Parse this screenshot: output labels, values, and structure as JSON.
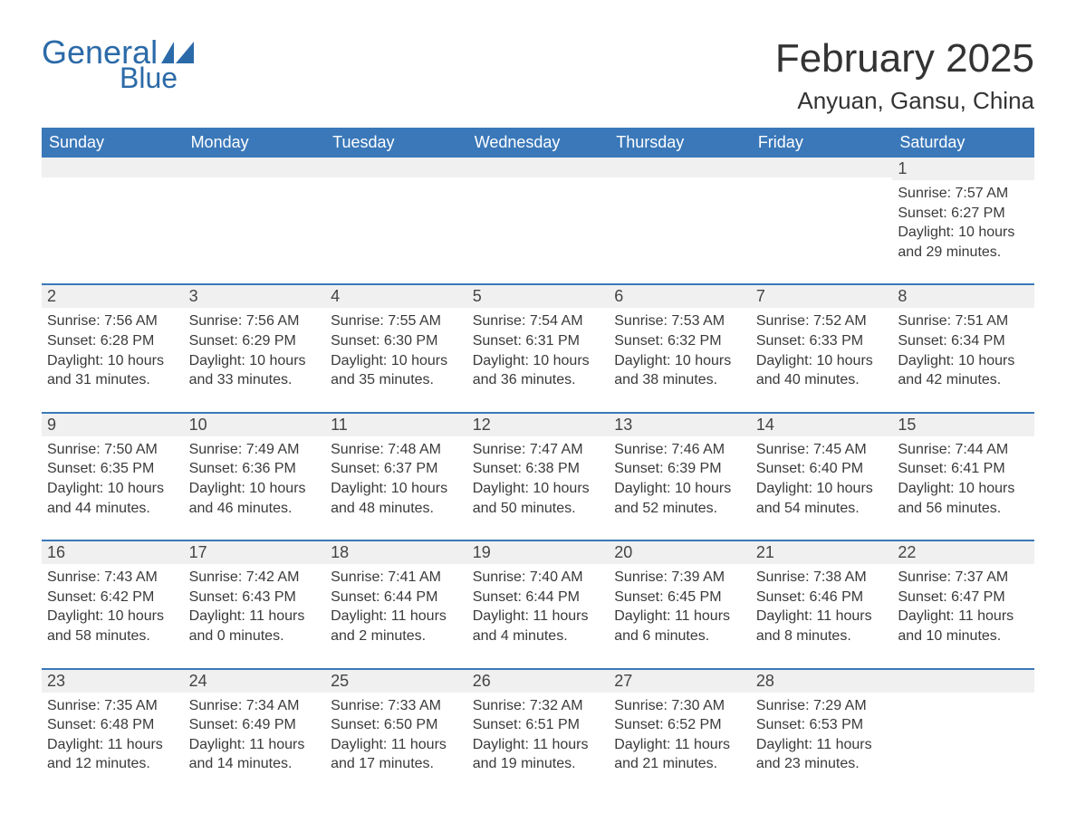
{
  "colors": {
    "header_bg": "#3a78b9",
    "header_text": "#ffffff",
    "band_bg": "#f0f0f0",
    "row_border_top": "#3a78b9",
    "row_separator": "#bfbfbf",
    "body_text": "#333333",
    "logo_text": "#2b6aa8",
    "logo_sail": "#2b6aa8"
  },
  "typography": {
    "title_fontsize": 44,
    "location_fontsize": 26,
    "header_fontsize": 18,
    "daynum_fontsize": 18,
    "body_fontsize": 16
  },
  "logo": {
    "line1": "General",
    "line2": "Blue"
  },
  "title": "February 2025",
  "location": "Anyuan, Gansu, China",
  "columns": [
    "Sunday",
    "Monday",
    "Tuesday",
    "Wednesday",
    "Thursday",
    "Friday",
    "Saturday"
  ],
  "weeks": [
    [
      null,
      null,
      null,
      null,
      null,
      null,
      {
        "n": "1",
        "sunrise": "Sunrise: 7:57 AM",
        "sunset": "Sunset: 6:27 PM",
        "daylight": "Daylight: 10 hours and 29 minutes."
      }
    ],
    [
      {
        "n": "2",
        "sunrise": "Sunrise: 7:56 AM",
        "sunset": "Sunset: 6:28 PM",
        "daylight": "Daylight: 10 hours and 31 minutes."
      },
      {
        "n": "3",
        "sunrise": "Sunrise: 7:56 AM",
        "sunset": "Sunset: 6:29 PM",
        "daylight": "Daylight: 10 hours and 33 minutes."
      },
      {
        "n": "4",
        "sunrise": "Sunrise: 7:55 AM",
        "sunset": "Sunset: 6:30 PM",
        "daylight": "Daylight: 10 hours and 35 minutes."
      },
      {
        "n": "5",
        "sunrise": "Sunrise: 7:54 AM",
        "sunset": "Sunset: 6:31 PM",
        "daylight": "Daylight: 10 hours and 36 minutes."
      },
      {
        "n": "6",
        "sunrise": "Sunrise: 7:53 AM",
        "sunset": "Sunset: 6:32 PM",
        "daylight": "Daylight: 10 hours and 38 minutes."
      },
      {
        "n": "7",
        "sunrise": "Sunrise: 7:52 AM",
        "sunset": "Sunset: 6:33 PM",
        "daylight": "Daylight: 10 hours and 40 minutes."
      },
      {
        "n": "8",
        "sunrise": "Sunrise: 7:51 AM",
        "sunset": "Sunset: 6:34 PM",
        "daylight": "Daylight: 10 hours and 42 minutes."
      }
    ],
    [
      {
        "n": "9",
        "sunrise": "Sunrise: 7:50 AM",
        "sunset": "Sunset: 6:35 PM",
        "daylight": "Daylight: 10 hours and 44 minutes."
      },
      {
        "n": "10",
        "sunrise": "Sunrise: 7:49 AM",
        "sunset": "Sunset: 6:36 PM",
        "daylight": "Daylight: 10 hours and 46 minutes."
      },
      {
        "n": "11",
        "sunrise": "Sunrise: 7:48 AM",
        "sunset": "Sunset: 6:37 PM",
        "daylight": "Daylight: 10 hours and 48 minutes."
      },
      {
        "n": "12",
        "sunrise": "Sunrise: 7:47 AM",
        "sunset": "Sunset: 6:38 PM",
        "daylight": "Daylight: 10 hours and 50 minutes."
      },
      {
        "n": "13",
        "sunrise": "Sunrise: 7:46 AM",
        "sunset": "Sunset: 6:39 PM",
        "daylight": "Daylight: 10 hours and 52 minutes."
      },
      {
        "n": "14",
        "sunrise": "Sunrise: 7:45 AM",
        "sunset": "Sunset: 6:40 PM",
        "daylight": "Daylight: 10 hours and 54 minutes."
      },
      {
        "n": "15",
        "sunrise": "Sunrise: 7:44 AM",
        "sunset": "Sunset: 6:41 PM",
        "daylight": "Daylight: 10 hours and 56 minutes."
      }
    ],
    [
      {
        "n": "16",
        "sunrise": "Sunrise: 7:43 AM",
        "sunset": "Sunset: 6:42 PM",
        "daylight": "Daylight: 10 hours and 58 minutes."
      },
      {
        "n": "17",
        "sunrise": "Sunrise: 7:42 AM",
        "sunset": "Sunset: 6:43 PM",
        "daylight": "Daylight: 11 hours and 0 minutes."
      },
      {
        "n": "18",
        "sunrise": "Sunrise: 7:41 AM",
        "sunset": "Sunset: 6:44 PM",
        "daylight": "Daylight: 11 hours and 2 minutes."
      },
      {
        "n": "19",
        "sunrise": "Sunrise: 7:40 AM",
        "sunset": "Sunset: 6:44 PM",
        "daylight": "Daylight: 11 hours and 4 minutes."
      },
      {
        "n": "20",
        "sunrise": "Sunrise: 7:39 AM",
        "sunset": "Sunset: 6:45 PM",
        "daylight": "Daylight: 11 hours and 6 minutes."
      },
      {
        "n": "21",
        "sunrise": "Sunrise: 7:38 AM",
        "sunset": "Sunset: 6:46 PM",
        "daylight": "Daylight: 11 hours and 8 minutes."
      },
      {
        "n": "22",
        "sunrise": "Sunrise: 7:37 AM",
        "sunset": "Sunset: 6:47 PM",
        "daylight": "Daylight: 11 hours and 10 minutes."
      }
    ],
    [
      {
        "n": "23",
        "sunrise": "Sunrise: 7:35 AM",
        "sunset": "Sunset: 6:48 PM",
        "daylight": "Daylight: 11 hours and 12 minutes."
      },
      {
        "n": "24",
        "sunrise": "Sunrise: 7:34 AM",
        "sunset": "Sunset: 6:49 PM",
        "daylight": "Daylight: 11 hours and 14 minutes."
      },
      {
        "n": "25",
        "sunrise": "Sunrise: 7:33 AM",
        "sunset": "Sunset: 6:50 PM",
        "daylight": "Daylight: 11 hours and 17 minutes."
      },
      {
        "n": "26",
        "sunrise": "Sunrise: 7:32 AM",
        "sunset": "Sunset: 6:51 PM",
        "daylight": "Daylight: 11 hours and 19 minutes."
      },
      {
        "n": "27",
        "sunrise": "Sunrise: 7:30 AM",
        "sunset": "Sunset: 6:52 PM",
        "daylight": "Daylight: 11 hours and 21 minutes."
      },
      {
        "n": "28",
        "sunrise": "Sunrise: 7:29 AM",
        "sunset": "Sunset: 6:53 PM",
        "daylight": "Daylight: 11 hours and 23 minutes."
      },
      null
    ]
  ]
}
